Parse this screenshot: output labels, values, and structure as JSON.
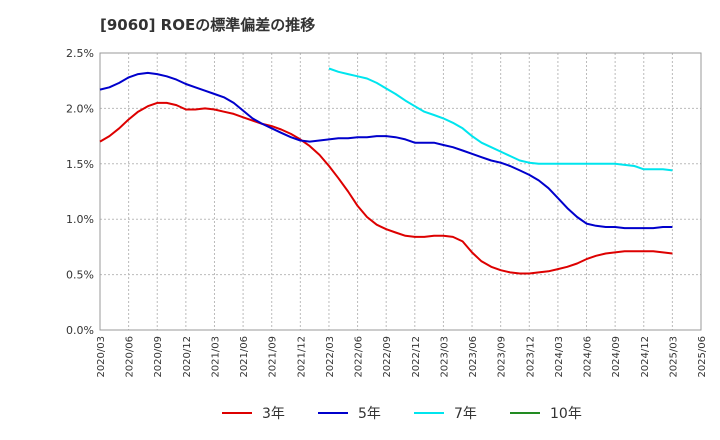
{
  "chart_data": {
    "type": "line",
    "title": "[9060]  ROEの標準偏差の推移",
    "xlabel": "",
    "ylabel": "",
    "ylim": [
      0,
      0.025
    ],
    "yticks": [
      "0.0%",
      "0.5%",
      "1.0%",
      "1.5%",
      "2.0%",
      "2.5%"
    ],
    "categories": [
      "2020/03",
      "2020/06",
      "2020/09",
      "2020/12",
      "2021/03",
      "2021/06",
      "2021/09",
      "2021/12",
      "2022/03",
      "2022/06",
      "2022/09",
      "2022/12",
      "2023/03",
      "2023/06",
      "2023/09",
      "2023/12",
      "2024/03",
      "2024/06",
      "2024/09",
      "2024/12",
      "2025/03",
      "2025/06"
    ],
    "grid": true,
    "legend_position": "bottom",
    "series": [
      {
        "name": "3年",
        "color": "#dd0000",
        "points": [
          [
            0,
            0.017
          ],
          [
            0.33,
            0.0175
          ],
          [
            0.67,
            0.0182
          ],
          [
            1,
            0.019
          ],
          [
            1.33,
            0.0197
          ],
          [
            1.67,
            0.0202
          ],
          [
            2,
            0.0205
          ],
          [
            2.33,
            0.0205
          ],
          [
            2.67,
            0.0203
          ],
          [
            3,
            0.0199
          ],
          [
            3.33,
            0.0199
          ],
          [
            3.67,
            0.02
          ],
          [
            4,
            0.0199
          ],
          [
            4.33,
            0.0197
          ],
          [
            4.67,
            0.0195
          ],
          [
            5,
            0.0192
          ],
          [
            5.33,
            0.0189
          ],
          [
            5.67,
            0.0186
          ],
          [
            6,
            0.0184
          ],
          [
            6.33,
            0.0181
          ],
          [
            6.67,
            0.0177
          ],
          [
            7,
            0.0172
          ],
          [
            7.33,
            0.0166
          ],
          [
            7.67,
            0.0158
          ],
          [
            8,
            0.0148
          ],
          [
            8.33,
            0.0137
          ],
          [
            8.67,
            0.0125
          ],
          [
            9,
            0.0112
          ],
          [
            9.33,
            0.0102
          ],
          [
            9.67,
            0.0095
          ],
          [
            10,
            0.0091
          ],
          [
            10.33,
            0.0088
          ],
          [
            10.67,
            0.0085
          ],
          [
            11,
            0.0084
          ],
          [
            11.33,
            0.0084
          ],
          [
            11.67,
            0.0085
          ],
          [
            12,
            0.0085
          ],
          [
            12.33,
            0.0084
          ],
          [
            12.67,
            0.008
          ],
          [
            13,
            0.007
          ],
          [
            13.33,
            0.0062
          ],
          [
            13.67,
            0.0057
          ],
          [
            14,
            0.0054
          ],
          [
            14.33,
            0.0052
          ],
          [
            14.67,
            0.0051
          ],
          [
            15,
            0.0051
          ],
          [
            15.33,
            0.0052
          ],
          [
            15.67,
            0.0053
          ],
          [
            16,
            0.0055
          ],
          [
            16.33,
            0.0057
          ],
          [
            16.67,
            0.006
          ],
          [
            17,
            0.0064
          ],
          [
            17.33,
            0.0067
          ],
          [
            17.67,
            0.0069
          ],
          [
            18,
            0.007
          ],
          [
            18.33,
            0.0071
          ],
          [
            18.67,
            0.0071
          ],
          [
            19,
            0.0071
          ],
          [
            19.33,
            0.0071
          ],
          [
            19.67,
            0.007
          ],
          [
            20,
            0.0069
          ]
        ]
      },
      {
        "name": "5年",
        "color": "#0000cc",
        "points": [
          [
            0,
            0.0217
          ],
          [
            0.33,
            0.0219
          ],
          [
            0.67,
            0.0223
          ],
          [
            1,
            0.0228
          ],
          [
            1.33,
            0.0231
          ],
          [
            1.67,
            0.0232
          ],
          [
            2,
            0.0231
          ],
          [
            2.33,
            0.0229
          ],
          [
            2.67,
            0.0226
          ],
          [
            3,
            0.0222
          ],
          [
            3.33,
            0.0219
          ],
          [
            3.67,
            0.0216
          ],
          [
            4,
            0.0213
          ],
          [
            4.33,
            0.021
          ],
          [
            4.67,
            0.0205
          ],
          [
            5,
            0.0198
          ],
          [
            5.33,
            0.0191
          ],
          [
            5.67,
            0.0186
          ],
          [
            6,
            0.0182
          ],
          [
            6.33,
            0.0178
          ],
          [
            6.67,
            0.0174
          ],
          [
            7,
            0.0171
          ],
          [
            7.33,
            0.017
          ],
          [
            7.67,
            0.0171
          ],
          [
            8,
            0.0172
          ],
          [
            8.33,
            0.0173
          ],
          [
            8.67,
            0.0173
          ],
          [
            9,
            0.0174
          ],
          [
            9.33,
            0.0174
          ],
          [
            9.67,
            0.0175
          ],
          [
            10,
            0.0175
          ],
          [
            10.33,
            0.0174
          ],
          [
            10.67,
            0.0172
          ],
          [
            11,
            0.0169
          ],
          [
            11.33,
            0.0169
          ],
          [
            11.67,
            0.0169
          ],
          [
            12,
            0.0167
          ],
          [
            12.33,
            0.0165
          ],
          [
            12.67,
            0.0162
          ],
          [
            13,
            0.0159
          ],
          [
            13.33,
            0.0156
          ],
          [
            13.67,
            0.0153
          ],
          [
            14,
            0.0151
          ],
          [
            14.33,
            0.0148
          ],
          [
            14.67,
            0.0144
          ],
          [
            15,
            0.014
          ],
          [
            15.33,
            0.0135
          ],
          [
            15.67,
            0.0128
          ],
          [
            16,
            0.0119
          ],
          [
            16.33,
            0.011
          ],
          [
            16.67,
            0.0102
          ],
          [
            17,
            0.0096
          ],
          [
            17.33,
            0.0094
          ],
          [
            17.67,
            0.0093
          ],
          [
            18,
            0.0093
          ],
          [
            18.33,
            0.0092
          ],
          [
            18.67,
            0.0092
          ],
          [
            19,
            0.0092
          ],
          [
            19.33,
            0.0092
          ],
          [
            19.67,
            0.0093
          ],
          [
            20,
            0.0093
          ]
        ]
      },
      {
        "name": "7年",
        "color": "#00e5ee",
        "points": [
          [
            8,
            0.0236
          ],
          [
            8.33,
            0.0233
          ],
          [
            8.67,
            0.0231
          ],
          [
            9,
            0.0229
          ],
          [
            9.33,
            0.0227
          ],
          [
            9.67,
            0.0223
          ],
          [
            10,
            0.0218
          ],
          [
            10.33,
            0.0213
          ],
          [
            10.67,
            0.0207
          ],
          [
            11,
            0.0202
          ],
          [
            11.33,
            0.0197
          ],
          [
            11.67,
            0.0194
          ],
          [
            12,
            0.0191
          ],
          [
            12.33,
            0.0187
          ],
          [
            12.67,
            0.0182
          ],
          [
            13,
            0.0175
          ],
          [
            13.33,
            0.0169
          ],
          [
            13.67,
            0.0165
          ],
          [
            14,
            0.0161
          ],
          [
            14.33,
            0.0157
          ],
          [
            14.67,
            0.0153
          ],
          [
            15,
            0.0151
          ],
          [
            15.33,
            0.015
          ],
          [
            15.67,
            0.015
          ],
          [
            16,
            0.015
          ],
          [
            16.33,
            0.015
          ],
          [
            16.67,
            0.015
          ],
          [
            17,
            0.015
          ],
          [
            17.33,
            0.015
          ],
          [
            17.67,
            0.015
          ],
          [
            18,
            0.015
          ],
          [
            18.33,
            0.0149
          ],
          [
            18.67,
            0.0148
          ],
          [
            19,
            0.0145
          ],
          [
            19.33,
            0.0145
          ],
          [
            19.67,
            0.0145
          ],
          [
            20,
            0.0144
          ]
        ]
      },
      {
        "name": "10年",
        "color": "#228b22",
        "points": []
      }
    ]
  }
}
